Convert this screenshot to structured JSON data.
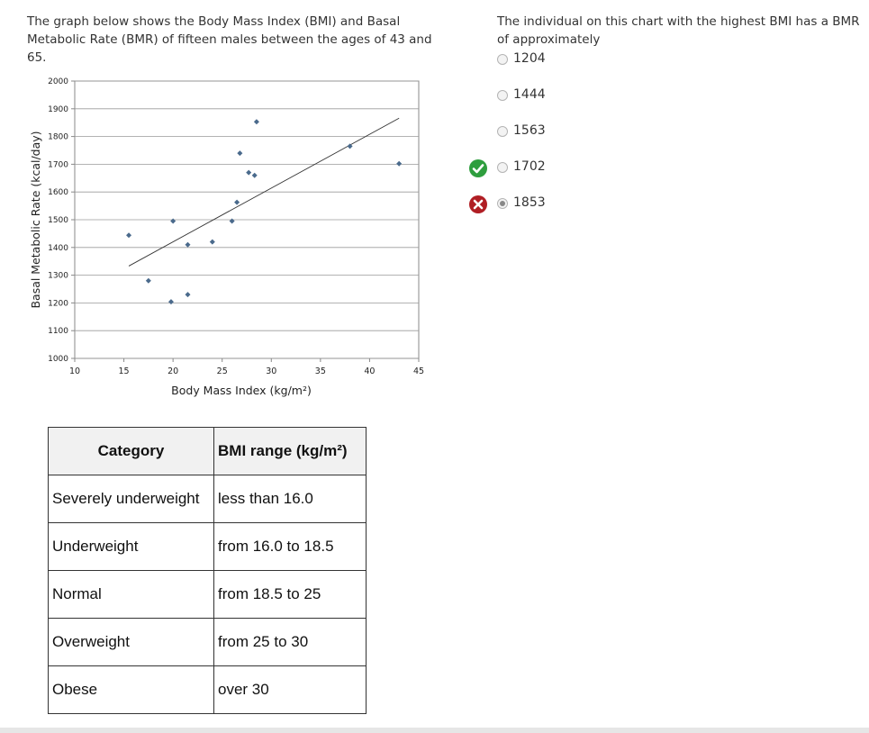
{
  "intro_text": "The graph below shows the Body Mass Index (BMI) and Basal Metabolic Rate (BMR) of fifteen males between the ages of 43 and 65.",
  "question": {
    "text": "The individual on this chart with the highest BMI has a BMR of approximately",
    "options": [
      {
        "label": "1204",
        "checked": false,
        "mark": ""
      },
      {
        "label": "1444",
        "checked": false,
        "mark": ""
      },
      {
        "label": "1563",
        "checked": false,
        "mark": ""
      },
      {
        "label": "1702",
        "checked": false,
        "mark": "correct"
      },
      {
        "label": "1853",
        "checked": true,
        "mark": "incorrect"
      }
    ],
    "colors": {
      "correct": "#2e9e3e",
      "incorrect": "#b01e24"
    }
  },
  "chart_data": {
    "type": "scatter",
    "title": "",
    "xlabel": "Body Mass Index (kg/m²)",
    "ylabel": "Basal Metabolic Rate (kcal/day)",
    "xlim": [
      10,
      45
    ],
    "ylim": [
      1000,
      2000
    ],
    "xticks": [
      10,
      15,
      20,
      25,
      30,
      35,
      40,
      45
    ],
    "yticks": [
      1000,
      1100,
      1200,
      1300,
      1400,
      1500,
      1600,
      1700,
      1800,
      1900,
      2000
    ],
    "grid": true,
    "marker_color": "#4a6a8c",
    "series": [
      {
        "points": [
          [
            15.5,
            1444
          ],
          [
            17.5,
            1280
          ],
          [
            19.8,
            1204
          ],
          [
            20.0,
            1495
          ],
          [
            21.5,
            1410
          ],
          [
            21.5,
            1230
          ],
          [
            24.0,
            1420
          ],
          [
            26.0,
            1495
          ],
          [
            26.5,
            1563
          ],
          [
            26.8,
            1740
          ],
          [
            27.7,
            1670
          ],
          [
            28.3,
            1660
          ],
          [
            28.5,
            1853
          ],
          [
            38.0,
            1765
          ],
          [
            43.0,
            1702
          ]
        ]
      }
    ],
    "trendline": [
      [
        15.5,
        1333
      ],
      [
        43.0,
        1866
      ]
    ]
  },
  "table": {
    "headers": [
      "Category",
      "BMI range (kg/m²)"
    ],
    "rows": [
      [
        "Severely underweight",
        "less than 16.0"
      ],
      [
        "Underweight",
        "from 16.0 to 18.5"
      ],
      [
        "Normal",
        "from 18.5 to 25"
      ],
      [
        "Overweight",
        "from 25 to 30"
      ],
      [
        "Obese",
        "over 30"
      ]
    ]
  }
}
